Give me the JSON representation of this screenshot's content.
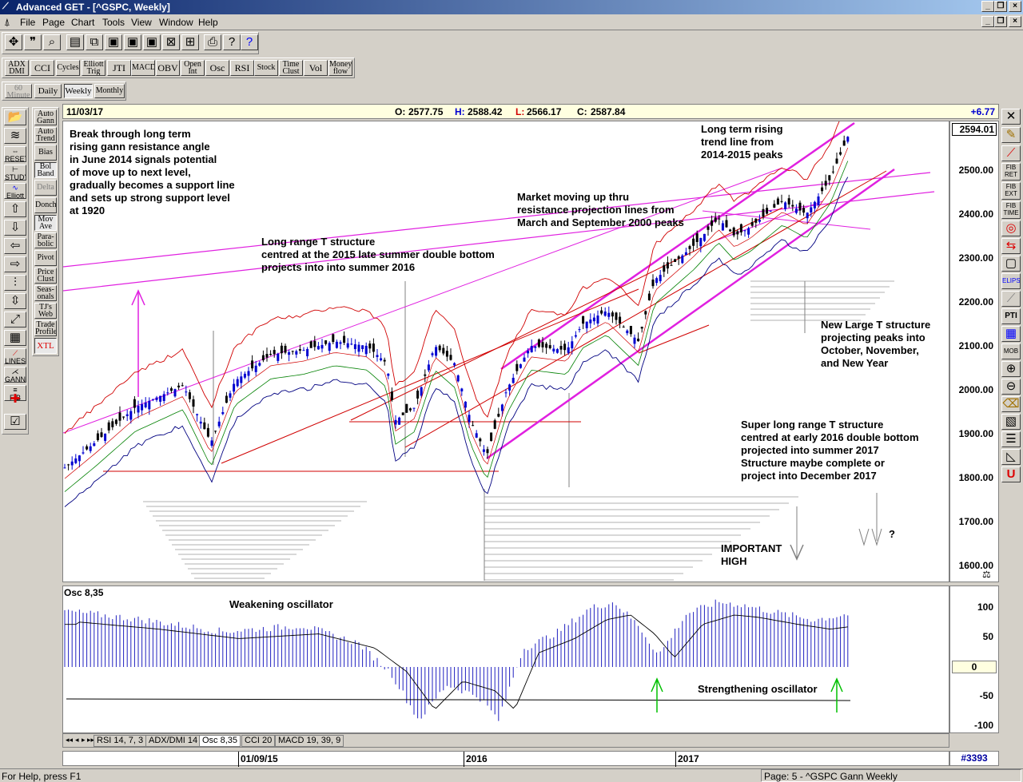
{
  "window": {
    "title": "Advanced GET - [^GSPC, Weekly]"
  },
  "menu": [
    "File",
    "Page",
    "Chart",
    "Tools",
    "View",
    "Window",
    "Help"
  ],
  "toolbar_studies": [
    "ADX DMI",
    "CCI",
    "Cycles",
    "Elliott Trig",
    "JTI",
    "MACD",
    "OBV",
    "Open Int",
    "Osc",
    "RSI",
    "Stock",
    "Time Clust",
    "Vol",
    "Money flow"
  ],
  "timeframes": [
    "60 Minute",
    "Daily",
    "Weekly",
    "Monthly"
  ],
  "left_studies": [
    "Auto Gann",
    "Auto Trend",
    "Bias",
    "Bol Band",
    "Delta",
    "Donch",
    "Mov Ave",
    "Para-bolic",
    "Pivot",
    "Price Clust",
    "Seas-onals",
    "TJ's Web",
    "Trade Profile",
    "XTL"
  ],
  "left_tools": [
    "STUDY",
    "Elliott",
    "RESET",
    "LINES",
    "GANN",
    "FIB"
  ],
  "right_tools": [
    "FIB RET",
    "FIB EXT",
    "FIB TIME",
    "ELIPS",
    "PTI",
    "MOB"
  ],
  "info": {
    "date": "11/03/17",
    "open_label": "O:",
    "open": "2577.75",
    "high_label": "H:",
    "high": "2588.42",
    "low_label": "L:",
    "low": "2566.17",
    "close_label": "C:",
    "close": "2587.84",
    "change": "+6.77"
  },
  "price_axis": {
    "current": "2594.01",
    "ticks": [
      "2500.00",
      "2400.00",
      "2300.00",
      "2200.00",
      "2100.00",
      "2000.00",
      "1900.00",
      "1800.00",
      "1700.00",
      "1600.00"
    ]
  },
  "annotations": {
    "break_through": "Break through long term\nrising gann resistance angle\nin June 2014 signals potential\nof move up to next level,\ngradually becomes a support line\nand sets up strong support level\nat 1920",
    "long_range_t": "Long range T structure\ncentred at the 2015 late summer double bottom\nprojects into into summer 2016",
    "market_moving": "Market moving up thru\nresistance projection lines from\nMarch and September 2000 peaks",
    "long_term_rising": "Long term rising\ntrend line from\n2014-2015 peaks",
    "new_large_t": "New Large T structure\nprojecting peaks into\nOctober, November,\nand New Year",
    "super_long_t": "Super long range T structure\ncentred at early 2016 double bottom\nprojected into summer 2017\nStructure maybe complete or\nproject into December 2017",
    "important_high": "IMPORTANT\nHIGH",
    "question": "?"
  },
  "oscillator": {
    "title": "Osc 8,35",
    "weakening": "Weakening oscillator",
    "strengthening": "Strengthening oscillator",
    "ticks": [
      "100",
      "50",
      "0",
      "-50",
      "-100"
    ]
  },
  "tabs": [
    "RSI 14, 7, 3",
    "ADX/DMI 14",
    "Osc 8,35",
    "CCI 20",
    "MACD 19, 39, 9"
  ],
  "timeline": {
    "labels": [
      "01/09/15",
      "2016",
      "2017"
    ],
    "bar_count": "#3393"
  },
  "status": {
    "left": "For Help, press F1",
    "right": "Page: 5 - ^GSPC Gann Weekly"
  },
  "colors": {
    "magenta": "#e020e0",
    "red": "#d00000",
    "blue": "#0000d0",
    "green": "#008000",
    "up_arrow_green": "#00c000"
  }
}
